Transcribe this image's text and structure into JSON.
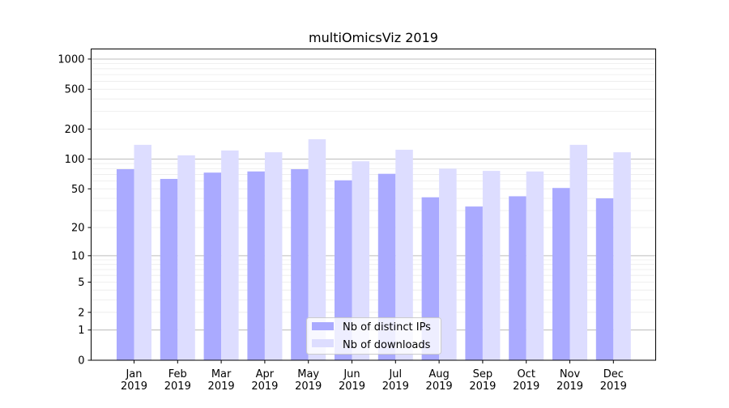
{
  "chart_data": {
    "type": "bar",
    "title": "multiOmicsViz 2019",
    "xlabel": "",
    "ylabel": "",
    "yscale": "log(y+1)",
    "ylim": [
      0,
      1300
    ],
    "grid": true,
    "legend_position": "bottom-center",
    "categories": [
      "Jan\n2019",
      "Feb\n2019",
      "Mar\n2019",
      "Apr\n2019",
      "May\n2019",
      "Jun\n2019",
      "Jul\n2019",
      "Aug\n2019",
      "Sep\n2019",
      "Oct\n2019",
      "Nov\n2019",
      "Dec\n2019"
    ],
    "yticks": [
      0,
      1,
      2,
      5,
      10,
      20,
      50,
      100,
      200,
      500,
      1000
    ],
    "series": [
      {
        "name": "Nb of distinct IPs",
        "color": "#aaaaff",
        "values": [
          79,
          63,
          73,
          75,
          79,
          61,
          71,
          41,
          33,
          42,
          51,
          40
        ]
      },
      {
        "name": "Nb of downloads",
        "color": "#ddddff",
        "values": [
          139,
          109,
          122,
          117,
          158,
          95,
          124,
          80,
          76,
          75,
          139,
          117
        ]
      }
    ]
  }
}
